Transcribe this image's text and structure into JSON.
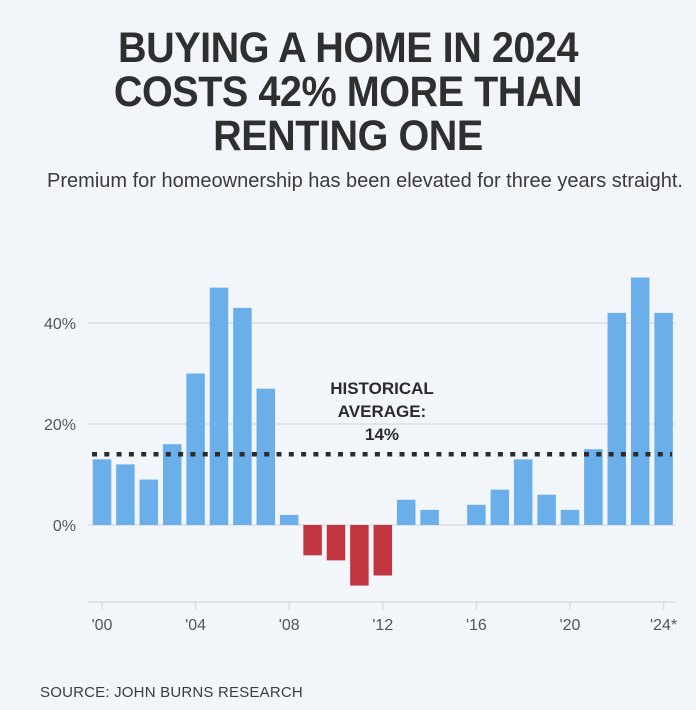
{
  "title": "BUYING A HOME IN 2024 COSTS 42% MORE THAN RENTING ONE",
  "title_lines": [
    "BUYING A HOME IN 2024",
    "COSTS 42% MORE THAN",
    "RENTING ONE"
  ],
  "subtitle": "Premium for homeownership has been elevated for three years straight.",
  "source": "SOURCE: JOHN BURNS RESEARCH",
  "colors": {
    "positive": "#6aaeea",
    "negative": "#c0353f",
    "average_line": "#2b2b2b",
    "grid": "#d9dde2",
    "text": "#555555"
  },
  "chart_data": {
    "type": "bar",
    "title": "BUYING A HOME IN 2024 COSTS 42% MORE THAN RENTING ONE",
    "xlabel": "",
    "ylabel": "",
    "x": [
      2000,
      2001,
      2002,
      2003,
      2004,
      2005,
      2006,
      2007,
      2008,
      2009,
      2010,
      2011,
      2012,
      2013,
      2014,
      2015,
      2016,
      2017,
      2018,
      2019,
      2020,
      2021,
      2022,
      2023,
      2024
    ],
    "values": [
      13,
      12,
      9,
      16,
      30,
      47,
      43,
      27,
      2,
      -6,
      -7,
      -12,
      -10,
      5,
      3,
      null,
      4,
      7,
      13,
      6,
      3,
      15,
      42,
      49,
      42
    ],
    "ylim": [
      -15,
      50
    ],
    "yticks": [
      0,
      20,
      40
    ],
    "ytick_labels": [
      "0%",
      "20%",
      "40%"
    ],
    "xticks": [
      2000,
      2004,
      2008,
      2012,
      2016,
      2020,
      2024
    ],
    "xtick_labels": [
      "'00",
      "'04",
      "'08",
      "'12",
      "'16",
      "'20",
      "'24*"
    ],
    "grid": true,
    "reference_line": {
      "value": 14,
      "style": "dotted"
    },
    "annotation": [
      "HISTORICAL",
      "AVERAGE:",
      "14%"
    ]
  }
}
